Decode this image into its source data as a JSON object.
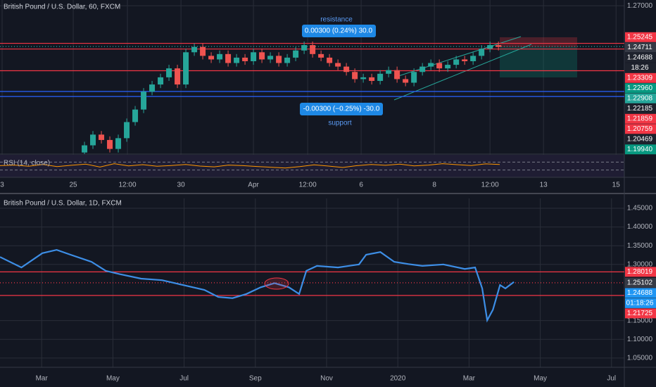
{
  "chart_data": [
    {
      "type": "candlestick",
      "title": "British Pound / U.S. Dollar, 60, FXCM",
      "xlim": [
        -10,
        63.9
      ],
      "ylim": [
        1.1875,
        1.2732
      ],
      "xticks": [
        {
          "value": -9.75,
          "label": "3"
        },
        {
          "value": -1.33,
          "label": "25"
        },
        {
          "value": 5.08,
          "label": "12:00"
        },
        {
          "value": 11.42,
          "label": "30"
        },
        {
          "value": 20,
          "label": "Apr"
        },
        {
          "value": 26.42,
          "label": "12:00"
        },
        {
          "value": 32.75,
          "label": "6"
        },
        {
          "value": 41.42,
          "label": "8"
        },
        {
          "value": 48,
          "label": "12:00"
        },
        {
          "value": 54.33,
          "label": "13"
        },
        {
          "value": 62.92,
          "label": "15"
        }
      ],
      "yticks": [
        {
          "value": 1.27,
          "label": "1.27000"
        }
      ],
      "up_color": "#26a69a",
      "down_color": "#ef5350",
      "open": [
        1.188,
        1.192,
        1.198,
        1.195,
        1.19,
        1.196,
        1.205,
        1.212,
        1.222,
        1.226,
        1.23,
        1.235,
        1.226,
        1.244,
        1.247,
        1.242,
        1.24,
        1.243,
        1.238,
        1.241,
        1.239,
        1.244,
        1.24,
        1.242,
        1.238,
        1.241,
        1.245,
        1.248,
        1.243,
        1.241,
        1.238,
        1.236,
        1.233,
        1.229,
        1.23,
        1.228,
        1.232,
        1.234,
        1.229,
        1.227,
        1.233,
        1.236,
        1.238,
        1.235,
        1.237,
        1.24,
        1.239,
        1.242,
        1.246,
        1.248
      ],
      "high": [
        1.194,
        1.2,
        1.2,
        1.197,
        1.198,
        1.207,
        1.214,
        1.224,
        1.228,
        1.232,
        1.237,
        1.237,
        1.246,
        1.249,
        1.249,
        1.244,
        1.245,
        1.245,
        1.243,
        1.243,
        1.246,
        1.246,
        1.244,
        1.244,
        1.243,
        1.247,
        1.25,
        1.25,
        1.245,
        1.243,
        1.24,
        1.238,
        1.235,
        1.232,
        1.232,
        1.234,
        1.236,
        1.236,
        1.231,
        1.235,
        1.238,
        1.24,
        1.24,
        1.239,
        1.242,
        1.242,
        1.244,
        1.248,
        1.25,
        1.25
      ],
      "low": [
        1.186,
        1.19,
        1.193,
        1.188,
        1.188,
        1.194,
        1.203,
        1.21,
        1.22,
        1.224,
        1.228,
        1.224,
        1.224,
        1.242,
        1.24,
        1.238,
        1.238,
        1.236,
        1.236,
        1.237,
        1.237,
        1.238,
        1.238,
        1.236,
        1.236,
        1.239,
        1.243,
        1.241,
        1.239,
        1.236,
        1.234,
        1.231,
        1.227,
        1.227,
        1.226,
        1.226,
        1.23,
        1.227,
        1.225,
        1.225,
        1.231,
        1.234,
        1.233,
        1.233,
        1.235,
        1.237,
        1.237,
        1.24,
        1.244,
        1.245
      ],
      "close": [
        1.192,
        1.198,
        1.195,
        1.19,
        1.196,
        1.205,
        1.212,
        1.222,
        1.226,
        1.23,
        1.235,
        1.226,
        1.244,
        1.247,
        1.242,
        1.24,
        1.243,
        1.238,
        1.241,
        1.239,
        1.244,
        1.24,
        1.242,
        1.238,
        1.241,
        1.245,
        1.248,
        1.243,
        1.241,
        1.238,
        1.236,
        1.233,
        1.229,
        1.23,
        1.228,
        1.232,
        1.234,
        1.229,
        1.227,
        1.233,
        1.236,
        1.238,
        1.235,
        1.237,
        1.24,
        1.239,
        1.242,
        1.246,
        1.248,
        1.247
      ],
      "levels": [
        {
          "value": 1.249,
          "color": "#f23645",
          "style": "solid"
        },
        {
          "value": 1.2458,
          "color": "#f23645",
          "style": "solid"
        },
        {
          "value": 1.2472,
          "color": "#26a69a",
          "style": "dotted"
        },
        {
          "value": 1.2337,
          "color": "#f23645",
          "style": "solid"
        },
        {
          "value": 1.2221,
          "color": "#2962ff",
          "style": "solid"
        },
        {
          "value": 1.2193,
          "color": "#2962ff",
          "style": "solid"
        }
      ],
      "price_tags": [
        {
          "value": 1.25245,
          "label": "1.25245",
          "color": "#f23645"
        },
        {
          "value": 1.24711,
          "label": "1.24711",
          "color": "#363a45"
        },
        {
          "value": 1.24688,
          "label": "1.24688",
          "color": "#1e222d"
        },
        {
          "value": null,
          "label": "18:26",
          "color": "#1e222d"
        },
        {
          "value": 1.23309,
          "label": "1.23309",
          "color": "#f23645"
        },
        {
          "value": 1.2296,
          "label": "1.22960",
          "color": "#089981"
        },
        {
          "value": 1.22908,
          "label": "1.22908",
          "color": "#26a69a"
        },
        {
          "value": 1.22185,
          "label": "1.22185",
          "color": "#1e222d"
        },
        {
          "value": 1.21859,
          "label": "1.21859",
          "color": "#f23645"
        },
        {
          "value": 1.20759,
          "label": "1.20759",
          "color": "#f23645"
        },
        {
          "value": 1.20469,
          "label": "1.20469",
          "color": "#1e222d"
        },
        {
          "value": 1.1994,
          "label": "1.19940",
          "color": "#089981"
        }
      ],
      "annotations": [
        "resistance",
        "0.00300 (0.24%) 30.0",
        "-0.00300 (−0.25%) -30.0",
        "support"
      ],
      "rsi": {
        "name": "RSI (14, close)",
        "color": "#ff9800",
        "ylim": [
          0,
          100
        ],
        "levels": [
          70,
          30
        ],
        "values": [
          52,
          55,
          49,
          58,
          47,
          54,
          60,
          45,
          62,
          51,
          57,
          49,
          53,
          58,
          50,
          46,
          55,
          52,
          48,
          44,
          40,
          47,
          56,
          50,
          43,
          52,
          58,
          54,
          60,
          51,
          55,
          62,
          57,
          53,
          61,
          58
        ]
      }
    },
    {
      "type": "line",
      "title": "British Pound / U.S. Dollar, 1D, FXCM",
      "color": "#3d8ee6",
      "xlim": [
        0.83,
        18.36
      ],
      "ylim": [
        1.029,
        1.4763
      ],
      "xticks": [
        {
          "value": 2,
          "label": "Mar"
        },
        {
          "value": 4,
          "label": "May"
        },
        {
          "value": 6,
          "label": "Jul"
        },
        {
          "value": 8,
          "label": "Sep"
        },
        {
          "value": 10,
          "label": "Nov"
        },
        {
          "value": 12,
          "label": "2020"
        },
        {
          "value": 14,
          "label": "Mar"
        },
        {
          "value": 16,
          "label": "May"
        },
        {
          "value": 18,
          "label": "Jul"
        }
      ],
      "yticks": [
        {
          "value": 1.45,
          "label": "1.45000"
        },
        {
          "value": 1.4,
          "label": "1.40000"
        },
        {
          "value": 1.35,
          "label": "1.35000"
        },
        {
          "value": 1.3,
          "label": "1.30000"
        },
        {
          "value": 1.15,
          "label": "1.15000"
        },
        {
          "value": 1.1,
          "label": "1.10000"
        },
        {
          "value": 1.05,
          "label": "1.05000"
        }
      ],
      "x": [
        0.83,
        1.43,
        2.02,
        2.42,
        2.81,
        3.4,
        3.8,
        4.19,
        4.79,
        5.38,
        5.97,
        6.57,
        6.96,
        7.36,
        7.75,
        8.15,
        8.54,
        8.94,
        9.23,
        9.43,
        9.73,
        10.32,
        10.91,
        11.11,
        11.51,
        11.9,
        12.3,
        12.69,
        13.28,
        13.88,
        14.17,
        14.37,
        14.51,
        14.67,
        14.87,
        15.02,
        15.26
      ],
      "values": [
        1.32,
        1.292,
        1.33,
        1.339,
        1.326,
        1.307,
        1.283,
        1.274,
        1.262,
        1.258,
        1.245,
        1.232,
        1.213,
        1.21,
        1.221,
        1.239,
        1.25,
        1.239,
        1.221,
        1.283,
        1.296,
        1.292,
        1.3,
        1.326,
        1.333,
        1.307,
        1.301,
        1.296,
        1.3,
        1.288,
        1.292,
        1.236,
        1.151,
        1.179,
        1.245,
        1.236,
        1.253
      ],
      "levels": [
        {
          "value": 1.2802,
          "color": "#f23645",
          "style": "solid"
        },
        {
          "value": 1.251,
          "color": "#f23645",
          "style": "dotted"
        },
        {
          "value": 1.2172,
          "color": "#f23645",
          "style": "solid"
        }
      ],
      "price_tags": [
        {
          "value": 1.28019,
          "label": "1.28019",
          "color": "#f23645"
        },
        {
          "value": 1.25102,
          "label": "1.25102",
          "color": "#363a45"
        },
        {
          "value": 1.24688,
          "label": "1.24688",
          "color": "#2196f3"
        },
        {
          "value": null,
          "label": "01:18:26",
          "color": "#2196f3"
        },
        {
          "value": 1.21725,
          "label": "1.21725",
          "color": "#f23645"
        }
      ]
    }
  ]
}
